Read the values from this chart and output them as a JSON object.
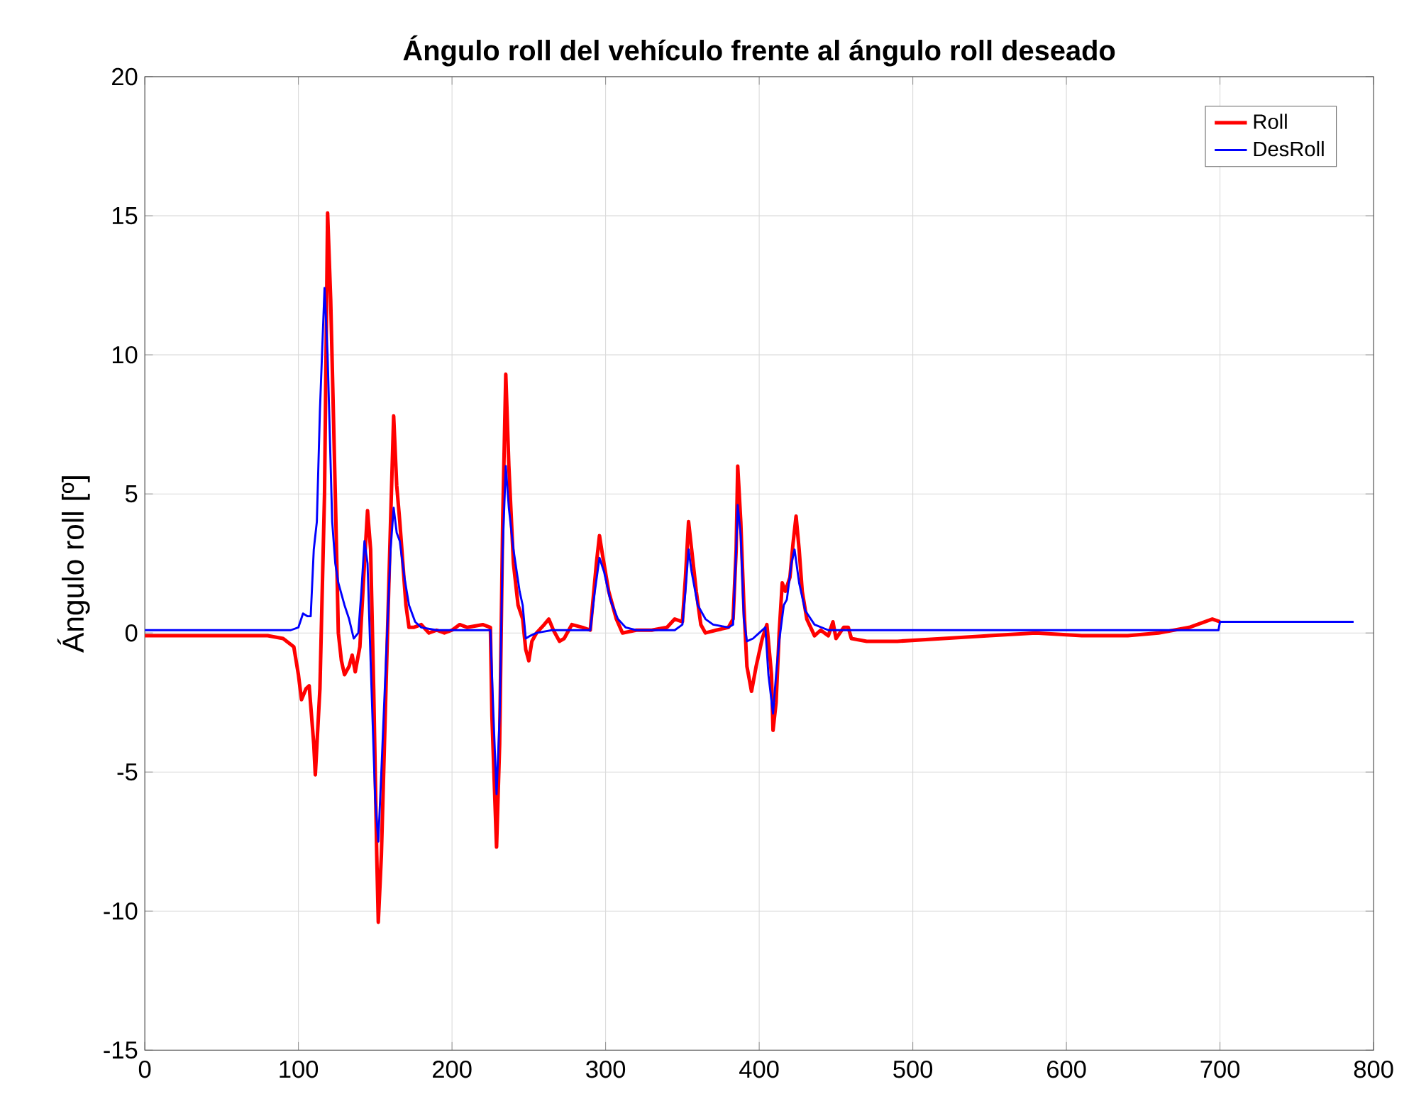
{
  "chart_data": {
    "type": "line",
    "title": "Ángulo roll del vehículo frente al ángulo roll deseado",
    "ylabel": "Ángulo roll [º]",
    "xlim": [
      0,
      800
    ],
    "ylim": [
      -15,
      20
    ],
    "xticks": [
      0,
      100,
      200,
      300,
      400,
      500,
      600,
      700,
      800
    ],
    "yticks": [
      -15,
      -10,
      -5,
      0,
      5,
      10,
      15,
      20
    ],
    "grid": true,
    "legend": "top right",
    "line_style": "solid",
    "marker": "none",
    "series": [
      {
        "name": "Roll",
        "color": "#ff0000",
        "x": [
          0,
          80,
          90,
          97,
          100,
          102,
          105,
          107,
          110,
          111,
          114,
          117,
          119,
          121,
          124,
          126,
          128,
          130,
          133,
          135,
          137,
          140,
          143,
          145,
          147,
          149,
          151,
          152,
          154,
          157,
          160,
          162,
          164,
          166,
          170,
          172,
          175,
          180,
          185,
          190,
          195,
          200,
          205,
          210,
          220,
          225,
          226,
          229,
          231,
          233,
          235,
          237,
          240,
          243,
          246,
          248,
          250,
          252,
          255,
          260,
          263,
          266,
          270,
          273,
          278,
          285,
          290,
          294,
          296,
          298,
          302,
          307,
          311,
          320,
          330,
          340,
          345,
          350,
          352,
          354,
          356,
          359,
          362,
          365,
          372,
          380,
          383,
          385,
          386,
          388,
          390,
          392,
          395,
          398,
          402,
          405,
          408,
          409,
          411,
          413,
          415,
          417,
          420,
          422,
          424,
          426,
          428,
          431,
          436,
          440,
          445,
          448,
          450,
          455,
          458,
          460,
          470,
          490,
          520,
          550,
          580,
          610,
          640,
          660,
          680,
          695,
          700
        ],
        "values": [
          -0.1,
          -0.1,
          -0.2,
          -0.5,
          -1.5,
          -2.4,
          -2.0,
          -1.9,
          -4.0,
          -5.1,
          -2.0,
          5,
          15.1,
          12,
          5,
          0,
          -1.0,
          -1.5,
          -1.2,
          -0.8,
          -1.4,
          -0.5,
          2.5,
          4.4,
          3,
          -2,
          -8,
          -10.4,
          -8,
          -2,
          4,
          7.8,
          5.3,
          4,
          1,
          0.2,
          0.2,
          0.3,
          0,
          0.1,
          0,
          0.1,
          0.3,
          0.2,
          0.3,
          0.2,
          -3,
          -7.7,
          -4,
          4,
          9.3,
          6,
          2.5,
          1.0,
          0.5,
          -0.6,
          -1.0,
          -0.3,
          0,
          0.3,
          0.5,
          0.1,
          -0.3,
          -0.2,
          0.3,
          0.2,
          0.1,
          2.5,
          3.5,
          2.8,
          1.5,
          0.5,
          0.0,
          0.1,
          0.1,
          0.2,
          0.5,
          0.4,
          2,
          4.0,
          3,
          1.5,
          0.3,
          0.0,
          0.1,
          0.2,
          0.5,
          3,
          6.0,
          4,
          1,
          -1.2,
          -2.1,
          -1.2,
          -0.2,
          0.3,
          -1.5,
          -3.5,
          -2.5,
          0,
          1.8,
          1.5,
          2,
          3.2,
          4.2,
          3,
          1.5,
          0.5,
          -0.1,
          0.1,
          -0.1,
          0.4,
          -0.2,
          0.2,
          0.2,
          -0.2,
          -0.3,
          -0.3,
          -0.2,
          -0.1,
          0,
          -0.1,
          -0.1,
          0,
          0.2,
          0.5,
          0.4
        ]
      },
      {
        "name": "DesRoll",
        "color": "#0000ff",
        "x": [
          0,
          95,
          100,
          103,
          106,
          108,
          110,
          112,
          114,
          117,
          119,
          122,
          124,
          126,
          130,
          133,
          136,
          139,
          141,
          143,
          145,
          147,
          150,
          152,
          154,
          157,
          160,
          162,
          164,
          166,
          169,
          172,
          176,
          180,
          190,
          210,
          225,
          227,
          229,
          231,
          233,
          235,
          237,
          240,
          244,
          246,
          248,
          251,
          255,
          265,
          290,
          293,
          296,
          299,
          303,
          308,
          313,
          320,
          345,
          350,
          352,
          354,
          356,
          360,
          365,
          370,
          380,
          383,
          385,
          386,
          388,
          390,
          392,
          396,
          400,
          404,
          406,
          409,
          411,
          413,
          416,
          418,
          421,
          423,
          426,
          430,
          436,
          445,
          460,
          600,
          699,
          700,
          787
        ],
        "values": [
          0.1,
          0.1,
          0.2,
          0.7,
          0.6,
          0.6,
          3,
          4,
          8,
          12.4,
          10,
          4,
          2.5,
          1.8,
          1.0,
          0.5,
          -0.2,
          0,
          1.5,
          3.3,
          2.5,
          -1,
          -6,
          -7.5,
          -5,
          -1,
          3,
          4.5,
          3.6,
          3.3,
          2.0,
          1.0,
          0.4,
          0.2,
          0.1,
          0.1,
          0.1,
          -3,
          -5.8,
          -3,
          3,
          6.0,
          4.5,
          3.0,
          1.5,
          1.0,
          -0.2,
          -0.1,
          0,
          0.1,
          0.1,
          1.5,
          2.7,
          2.2,
          1.2,
          0.5,
          0.2,
          0.1,
          0.1,
          0.3,
          1.5,
          3.0,
          2.2,
          1.0,
          0.5,
          0.3,
          0.2,
          0.3,
          3,
          4.6,
          3.5,
          0.5,
          -0.3,
          -0.2,
          0,
          0.2,
          -1.5,
          -2.9,
          -1.5,
          -0.3,
          1.0,
          1.2,
          2.5,
          3.0,
          1.8,
          0.8,
          0.3,
          0.1,
          0.1,
          0.1,
          0.1,
          0.4,
          0.4
        ]
      }
    ]
  }
}
